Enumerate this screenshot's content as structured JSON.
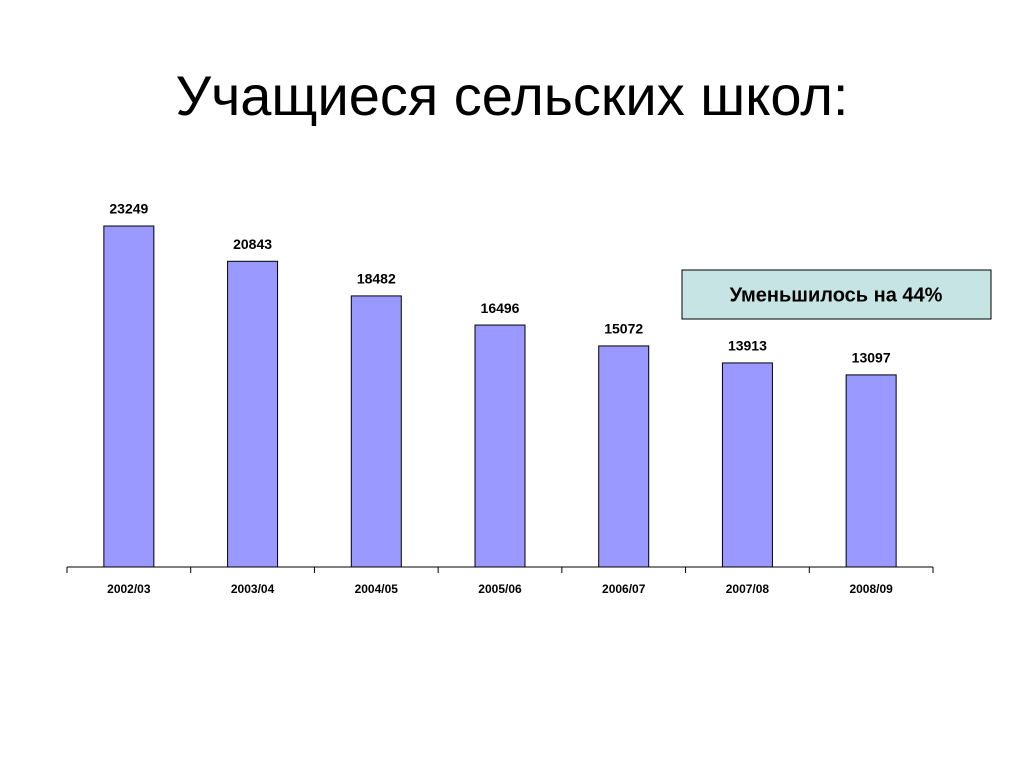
{
  "chart_data": {
    "type": "bar",
    "title": "Учащиеся сельских школ:",
    "categories": [
      "2002/03",
      "2003/04",
      "2004/05",
      "2005/06",
      "2006/07",
      "2007/08",
      "2008/09"
    ],
    "values": [
      23249,
      20843,
      18482,
      16496,
      15072,
      13913,
      13097
    ],
    "color": "#9999ff",
    "annotation": "Уменьшилось на 44%"
  }
}
